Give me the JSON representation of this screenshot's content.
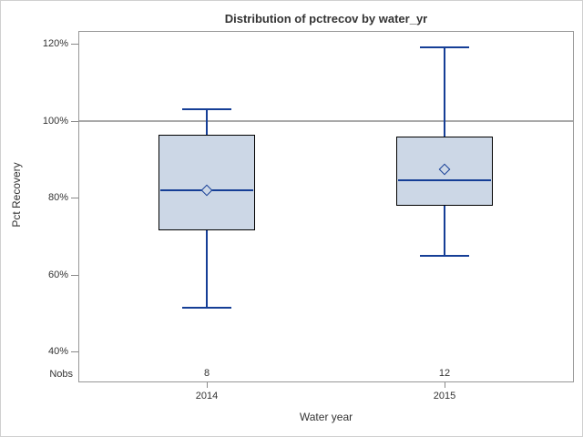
{
  "chart_data": {
    "type": "box",
    "title": "Distribution of pctrecov by water_yr",
    "xlabel": "Water year",
    "ylabel": "Pct Recovery",
    "ylim": [
      32,
      123
    ],
    "grid": "off",
    "y_ticks": [
      {
        "label": "120%",
        "value": 120
      },
      {
        "label": "100%",
        "value": 100
      },
      {
        "label": "80%",
        "value": 80
      },
      {
        "label": "60%",
        "value": 60
      },
      {
        "label": "40%",
        "value": 40
      }
    ],
    "reference_lines": [
      100
    ],
    "nobs_label": "Nobs",
    "categories": [
      "2014",
      "2015"
    ],
    "series": [
      {
        "category": "2014",
        "n": 8,
        "whisker_low": 51.5,
        "q1": 71.5,
        "median": 82,
        "mean": 82,
        "q3": 96.5,
        "whisker_high": 103
      },
      {
        "category": "2015",
        "n": 12,
        "whisker_low": 65,
        "q1": 78,
        "median": 84.5,
        "mean": 87.5,
        "q3": 96,
        "whisker_high": 119
      }
    ],
    "colors": {
      "box_fill": "#ccd7e6",
      "box_border": "#000000",
      "whisker": "#153e96",
      "median": "#153e96",
      "mean_marker": "#153e96",
      "reference_line": "#a9a9a9",
      "wall_border": "#979797",
      "tick": "#8a8a8a",
      "text": "#333333",
      "figure_border": "#d0d0d0"
    }
  }
}
